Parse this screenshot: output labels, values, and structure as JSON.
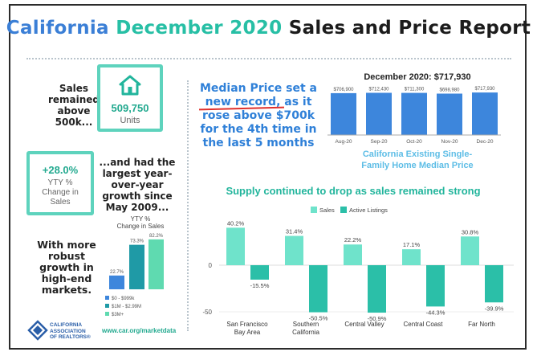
{
  "header": {
    "title_part1": "California",
    "title_part2": "December 2020",
    "title_part3": "Sales and Price Report"
  },
  "left_panel": {
    "sales_note": [
      "Sales",
      "remained",
      "above",
      "500k..."
    ],
    "sales_value": "509,750",
    "sales_unit": "Units",
    "yoy_value": "+28.0%",
    "yoy_caption": [
      "YTY %",
      "Change in",
      "Sales"
    ],
    "growth_note": [
      "...and had the",
      "largest year-",
      "over-year",
      "growth since",
      "May 2009..."
    ],
    "robust_note": [
      "With more",
      "robust",
      "growth in",
      "high-end",
      "markets."
    ],
    "footer_url": "www.car.org/marketdata",
    "logo_text": [
      "CALIFORNIA",
      "ASSOCIATION",
      "OF REALTORS®"
    ]
  },
  "median_note": [
    "Median Price set a",
    "new record, as it",
    "rose above $700k",
    "for the 4th time in",
    "the last 5 months"
  ],
  "colors": {
    "blue": "#3d86dc",
    "teal": "#2bbfa8",
    "mint": "#6fe3cb",
    "light_teal": "#8ee9d6",
    "dark_teal": "#1f9aa6",
    "green": "#5fdab0"
  },
  "chart_data": [
    {
      "type": "bar",
      "title": "YTY % Change in Sales",
      "categories": [
        "$0 - $999k",
        "$1M - $2.99M",
        "$3M+"
      ],
      "values": [
        22.7,
        73.3,
        82.2
      ],
      "value_labels": [
        "22.7%",
        "73.3%",
        "82.2%"
      ],
      "legend": [
        "$0 - $999k",
        "$1M - $2.99M",
        "$3M+"
      ],
      "ylim": [
        0,
        90
      ]
    },
    {
      "type": "bar",
      "title": "December 2020: $717,930",
      "categories": [
        "Aug-20",
        "Sep-20",
        "Oct-20",
        "Nov-20",
        "Dec-20"
      ],
      "values": [
        706900,
        712430,
        711300,
        698980,
        717930
      ],
      "value_labels": [
        "$706,900",
        "$712,430",
        "$711,300",
        "$698,980",
        "$717,930"
      ],
      "caption": "California Existing Single-Family Home Median Price",
      "ylim": [
        0,
        760000
      ]
    },
    {
      "type": "bar",
      "title": "Supply continued to drop as sales remained strong",
      "categories": [
        "San Francisco Bay Area",
        "Southern California",
        "Central Valley",
        "Central Coast",
        "Far North"
      ],
      "category_lines": [
        [
          "San Francisco",
          "Bay Area"
        ],
        [
          "Southern",
          "California"
        ],
        [
          "Central Valley"
        ],
        [
          "Central Coast"
        ],
        [
          "Far North"
        ]
      ],
      "series": [
        {
          "name": "Sales",
          "values": [
            40.2,
            31.4,
            22.2,
            17.1,
            30.8
          ],
          "labels": [
            "40.2%",
            "31.4%",
            "22.2%",
            "17.1%",
            "30.8%"
          ]
        },
        {
          "name": "Active Listings",
          "values": [
            -15.5,
            -50.5,
            -50.9,
            -44.3,
            -39.9
          ],
          "labels": [
            "-15.5%",
            "-50.5%",
            "-50.9%",
            "-44.3%",
            "-39.9%"
          ]
        }
      ],
      "yticks": [
        0,
        -50
      ],
      "ylim": [
        -50,
        40.2
      ]
    }
  ]
}
